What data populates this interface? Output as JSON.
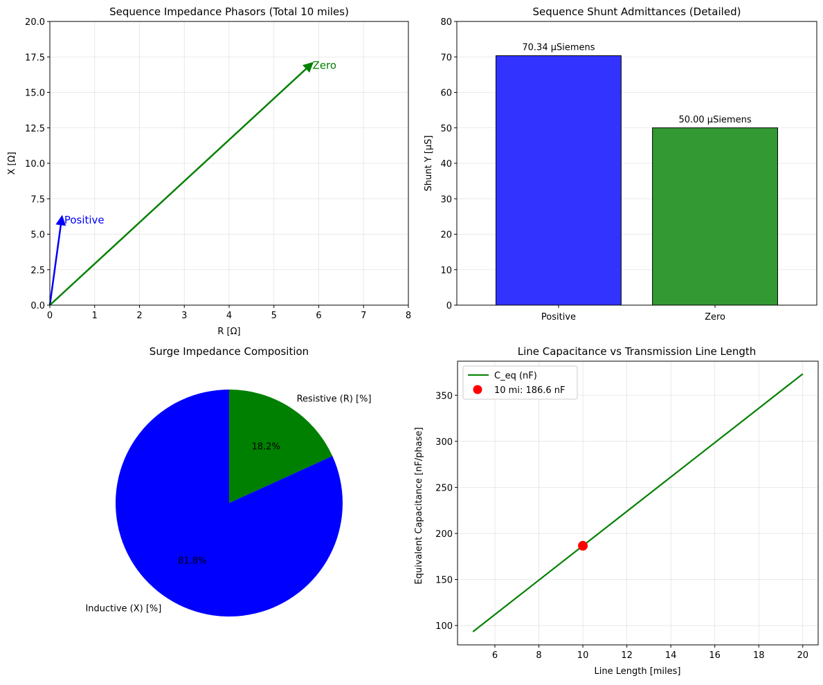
{
  "charts": [
    {
      "type": "line",
      "title": "Sequence Impedance Phasors (Total 10 miles)",
      "xlabel": "R [Ω]",
      "ylabel": "X [Ω]",
      "xlim": [
        0,
        8
      ],
      "ylim": [
        0,
        20
      ],
      "xticks": [
        0,
        1,
        2,
        3,
        4,
        5,
        6,
        7,
        8
      ],
      "yticks": [
        0.0,
        2.5,
        5.0,
        7.5,
        10.0,
        12.5,
        15.0,
        17.5,
        20.0
      ],
      "ytick_labels": [
        "0.0",
        "2.5",
        "5.0",
        "7.5",
        "10.0",
        "12.5",
        "15.0",
        "17.5",
        "20.0"
      ],
      "grid": true,
      "phasors": [
        {
          "name": "Positive",
          "r": 0.26,
          "x": 6.0,
          "color": "#0000ff"
        },
        {
          "name": "Zero",
          "r": 5.8,
          "x": 16.9,
          "color": "#008000"
        }
      ]
    },
    {
      "type": "bar",
      "title": "Sequence Shunt Admittances (Detailed)",
      "xlabel": "",
      "ylabel": "Shunt Y [μS]",
      "ylim": [
        0,
        80
      ],
      "yticks": [
        0,
        10,
        20,
        30,
        40,
        50,
        60,
        70,
        80
      ],
      "grid": true,
      "categories": [
        "Positive",
        "Zero"
      ],
      "values": [
        70.34,
        50.0
      ],
      "value_labels": [
        "70.34 μSiemens",
        "50.00 μSiemens"
      ],
      "colors": [
        "#3333ff",
        "#339933"
      ]
    },
    {
      "type": "pie",
      "title": "Surge Impedance Composition",
      "labels": [
        "Resistive (R) [%]",
        "Inductive (X) [%]"
      ],
      "values": [
        18.2,
        81.8
      ],
      "pct_labels": [
        "18.2%",
        "81.8%"
      ],
      "colors": [
        "#008000",
        "#0000ff"
      ]
    },
    {
      "type": "line",
      "title": "Line Capacitance vs Transmission Line Length",
      "xlabel": "Line Length [miles]",
      "ylabel": "Equivalent Capacitance [nF/phase]",
      "xlim": [
        4.3,
        20.7
      ],
      "ylim": [
        79,
        387
      ],
      "xticks": [
        6,
        8,
        10,
        12,
        14,
        16,
        18,
        20
      ],
      "yticks": [
        100,
        150,
        200,
        250,
        300,
        350
      ],
      "grid": true,
      "series": [
        {
          "name": "C_eq (nF)",
          "x": [
            5,
            20
          ],
          "y": [
            93.3,
            373.2
          ],
          "color": "#008000"
        }
      ],
      "marker": {
        "name": "10 mi: 186.6 nF",
        "x": 10,
        "y": 186.6,
        "color": "#ff0000"
      },
      "legend": "upper-left"
    }
  ]
}
